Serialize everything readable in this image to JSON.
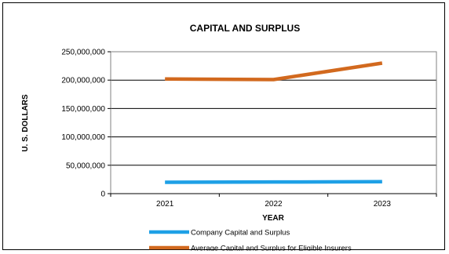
{
  "chart_data": {
    "type": "line",
    "title": "CAPITAL AND SURPLUS",
    "xlabel": "YEAR",
    "ylabel": "U. S. DOLLARS",
    "categories": [
      "2021",
      "2022",
      "2023"
    ],
    "ylim": [
      0,
      250000000
    ],
    "yticks": [
      0,
      50000000,
      100000000,
      150000000,
      200000000,
      250000000
    ],
    "ytick_labels": [
      "0",
      "50,000,000",
      "100,000,000",
      "150,000,000",
      "200,000,000",
      "250,000,000"
    ],
    "grid": true,
    "legend_position": "bottom",
    "series": [
      {
        "name": "Company Capital and Surplus",
        "color": "#1ea0e6",
        "values": [
          20000000,
          20500000,
          21000000
        ]
      },
      {
        "name": "Average Capital and Surplus for Eligible Insurers",
        "color": "#d2691e",
        "values": [
          202000000,
          201000000,
          230000000
        ]
      }
    ]
  }
}
